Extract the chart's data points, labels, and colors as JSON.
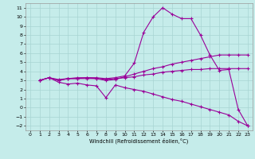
{
  "xlabel": "Windchill (Refroidissement éolien,°C)",
  "background_color": "#c5ecea",
  "grid_color": "#a8d5d3",
  "line_color": "#990099",
  "xlim": [
    -0.5,
    23.5
  ],
  "ylim": [
    -2.5,
    11.5
  ],
  "xticks": [
    0,
    1,
    2,
    3,
    4,
    5,
    6,
    7,
    8,
    9,
    10,
    11,
    12,
    13,
    14,
    15,
    16,
    17,
    18,
    19,
    20,
    21,
    22,
    23
  ],
  "yticks": [
    -2,
    -1,
    0,
    1,
    2,
    3,
    4,
    5,
    6,
    7,
    8,
    9,
    10,
    11
  ],
  "curve1_x": [
    1,
    2,
    3,
    4,
    5,
    6,
    7,
    8,
    9,
    10,
    11,
    12,
    13,
    14,
    15,
    16,
    17,
    18,
    19,
    20,
    21,
    22,
    23
  ],
  "curve1_y": [
    3.0,
    3.3,
    3.0,
    3.2,
    3.2,
    3.3,
    3.3,
    3.2,
    3.3,
    3.5,
    4.9,
    8.3,
    10.0,
    11.0,
    10.3,
    9.8,
    9.8,
    8.0,
    5.8,
    4.1,
    4.2,
    -0.2,
    -2.0
  ],
  "curve2_x": [
    1,
    2,
    3,
    4,
    5,
    6,
    7,
    8,
    9,
    10,
    11,
    12,
    13,
    14,
    15,
    16,
    17,
    18,
    19,
    20,
    21,
    22,
    23
  ],
  "curve2_y": [
    3.0,
    3.3,
    3.0,
    3.2,
    3.3,
    3.3,
    3.2,
    3.0,
    3.1,
    3.4,
    3.7,
    4.0,
    4.3,
    4.5,
    4.8,
    5.0,
    5.2,
    5.4,
    5.6,
    5.8,
    5.8,
    5.8,
    5.8
  ],
  "curve3_x": [
    1,
    2,
    3,
    4,
    5,
    6,
    7,
    8,
    9,
    10,
    11,
    12,
    13,
    14,
    15,
    16,
    17,
    18,
    19,
    20,
    21,
    22,
    23
  ],
  "curve3_y": [
    3.0,
    3.3,
    3.1,
    3.2,
    3.2,
    3.2,
    3.2,
    3.1,
    3.2,
    3.3,
    3.4,
    3.6,
    3.7,
    3.9,
    4.0,
    4.1,
    4.2,
    4.2,
    4.3,
    4.3,
    4.3,
    4.3,
    4.3
  ],
  "curve4_x": [
    1,
    2,
    3,
    4,
    5,
    6,
    7,
    8,
    9,
    10,
    11,
    12,
    13,
    14,
    15,
    16,
    17,
    18,
    19,
    20,
    21,
    22,
    23
  ],
  "curve4_y": [
    3.0,
    3.3,
    2.8,
    2.6,
    2.7,
    2.5,
    2.4,
    1.1,
    2.5,
    2.2,
    2.0,
    1.8,
    1.5,
    1.2,
    0.9,
    0.7,
    0.4,
    0.1,
    -0.2,
    -0.5,
    -0.8,
    -1.5,
    -2.0
  ]
}
